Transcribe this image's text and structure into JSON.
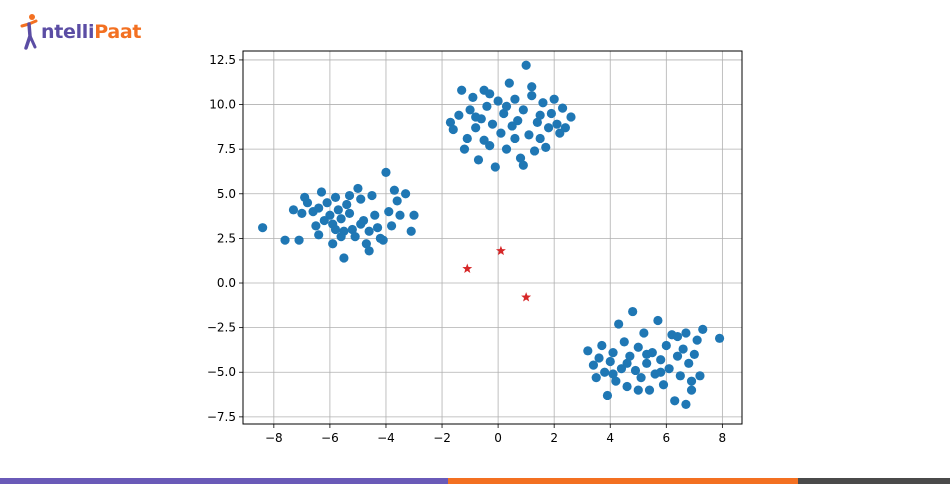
{
  "brand": {
    "name_prefix": "ntelli",
    "name_suffix": "Paat",
    "accent": "#f37021",
    "secondary": "#5b4da4"
  },
  "footer_colors": [
    "#6a5ab8",
    "#f37021",
    "#4a4a4a"
  ],
  "chart_data": {
    "type": "scatter",
    "title": "",
    "xlabel": "",
    "ylabel": "",
    "xlim": [
      -9.1,
      8.7
    ],
    "ylim": [
      -7.9,
      13.0
    ],
    "grid": true,
    "x_ticks": [
      -8,
      -6,
      -4,
      -2,
      0,
      2,
      4,
      6,
      8
    ],
    "x_tick_labels": [
      "−8",
      "−6",
      "−4",
      "−2",
      "0",
      "2",
      "4",
      "6",
      "8"
    ],
    "y_ticks": [
      -7.5,
      -5.0,
      -2.5,
      0.0,
      2.5,
      5.0,
      7.5,
      10.0,
      12.5
    ],
    "y_tick_labels": [
      "−7.5",
      "−5.0",
      "−2.5",
      "0.0",
      "2.5",
      "5.0",
      "7.5",
      "10.0",
      "12.5"
    ],
    "series": [
      {
        "marker": "circle",
        "color": "#1f77b4",
        "points": [
          [
            -8.4,
            3.1
          ],
          [
            -7.6,
            2.4
          ],
          [
            -7.1,
            2.4
          ],
          [
            -7.3,
            4.1
          ],
          [
            -6.8,
            4.5
          ],
          [
            -6.6,
            4.0
          ],
          [
            -6.5,
            3.2
          ],
          [
            -6.4,
            2.7
          ],
          [
            -6.3,
            5.1
          ],
          [
            -6.1,
            4.5
          ],
          [
            -6.0,
            3.8
          ],
          [
            -5.9,
            3.3
          ],
          [
            -5.9,
            2.2
          ],
          [
            -5.8,
            4.8
          ],
          [
            -5.7,
            4.1
          ],
          [
            -5.6,
            3.6
          ],
          [
            -5.5,
            2.9
          ],
          [
            -5.5,
            1.4
          ],
          [
            -5.4,
            4.4
          ],
          [
            -5.3,
            3.9
          ],
          [
            -5.2,
            3.0
          ],
          [
            -5.1,
            2.6
          ],
          [
            -5.0,
            5.3
          ],
          [
            -4.9,
            4.7
          ],
          [
            -4.8,
            3.5
          ],
          [
            -4.7,
            2.2
          ],
          [
            -4.6,
            1.8
          ],
          [
            -4.5,
            4.9
          ],
          [
            -4.4,
            3.8
          ],
          [
            -4.3,
            3.1
          ],
          [
            -4.2,
            2.5
          ],
          [
            -4.0,
            6.2
          ],
          [
            -3.9,
            4.0
          ],
          [
            -3.8,
            3.2
          ],
          [
            -3.7,
            5.2
          ],
          [
            -3.5,
            3.8
          ],
          [
            -3.3,
            5.0
          ],
          [
            -3.1,
            2.9
          ],
          [
            -3.0,
            3.8
          ],
          [
            -4.1,
            2.4
          ],
          [
            -6.9,
            4.8
          ],
          [
            -6.2,
            3.5
          ],
          [
            -5.6,
            2.6
          ],
          [
            -5.3,
            4.9
          ],
          [
            -4.9,
            3.3
          ],
          [
            -4.6,
            2.9
          ],
          [
            -5.8,
            3.0
          ],
          [
            -6.4,
            4.2
          ],
          [
            -7.0,
            3.9
          ],
          [
            -3.6,
            4.6
          ],
          [
            -1.7,
            9.0
          ],
          [
            -1.6,
            8.6
          ],
          [
            -1.4,
            9.4
          ],
          [
            -1.3,
            10.8
          ],
          [
            -1.2,
            7.5
          ],
          [
            -1.1,
            8.1
          ],
          [
            -1.0,
            9.7
          ],
          [
            -0.9,
            10.4
          ],
          [
            -0.8,
            8.7
          ],
          [
            -0.7,
            6.9
          ],
          [
            -0.6,
            9.2
          ],
          [
            -0.5,
            10.8
          ],
          [
            -0.5,
            8.0
          ],
          [
            -0.4,
            9.9
          ],
          [
            -0.3,
            7.7
          ],
          [
            -0.2,
            8.9
          ],
          [
            -0.1,
            6.5
          ],
          [
            0.0,
            10.2
          ],
          [
            0.1,
            8.4
          ],
          [
            0.2,
            9.5
          ],
          [
            0.3,
            7.5
          ],
          [
            0.4,
            11.2
          ],
          [
            0.5,
            8.8
          ],
          [
            0.6,
            10.3
          ],
          [
            0.7,
            9.1
          ],
          [
            0.8,
            7.0
          ],
          [
            0.9,
            9.7
          ],
          [
            1.0,
            12.2
          ],
          [
            1.1,
            8.3
          ],
          [
            1.2,
            10.5
          ],
          [
            1.3,
            7.4
          ],
          [
            1.4,
            9.0
          ],
          [
            1.5,
            8.1
          ],
          [
            1.6,
            10.1
          ],
          [
            1.7,
            7.6
          ],
          [
            1.8,
            8.7
          ],
          [
            1.9,
            9.5
          ],
          [
            2.0,
            10.3
          ],
          [
            2.1,
            8.9
          ],
          [
            2.2,
            8.4
          ],
          [
            2.3,
            9.8
          ],
          [
            2.4,
            8.7
          ],
          [
            2.6,
            9.3
          ],
          [
            1.2,
            11.0
          ],
          [
            0.9,
            6.6
          ],
          [
            -0.3,
            10.6
          ],
          [
            0.6,
            8.1
          ],
          [
            1.5,
            9.4
          ],
          [
            -0.8,
            9.3
          ],
          [
            0.3,
            9.9
          ],
          [
            3.2,
            -3.8
          ],
          [
            3.4,
            -4.6
          ],
          [
            3.5,
            -5.3
          ],
          [
            3.6,
            -4.2
          ],
          [
            3.7,
            -3.5
          ],
          [
            3.8,
            -5.0
          ],
          [
            3.9,
            -6.3
          ],
          [
            4.0,
            -4.4
          ],
          [
            4.1,
            -3.9
          ],
          [
            4.2,
            -5.5
          ],
          [
            4.3,
            -2.3
          ],
          [
            4.4,
            -4.8
          ],
          [
            4.5,
            -3.3
          ],
          [
            4.6,
            -5.8
          ],
          [
            4.7,
            -4.1
          ],
          [
            4.8,
            -1.6
          ],
          [
            4.9,
            -4.9
          ],
          [
            5.0,
            -3.6
          ],
          [
            5.1,
            -5.3
          ],
          [
            5.2,
            -2.8
          ],
          [
            5.3,
            -4.5
          ],
          [
            5.4,
            -6.0
          ],
          [
            5.5,
            -3.9
          ],
          [
            5.6,
            -5.1
          ],
          [
            5.7,
            -2.1
          ],
          [
            5.8,
            -4.3
          ],
          [
            5.9,
            -5.7
          ],
          [
            6.0,
            -3.5
          ],
          [
            6.1,
            -4.8
          ],
          [
            6.2,
            -2.9
          ],
          [
            6.3,
            -6.6
          ],
          [
            6.4,
            -4.1
          ],
          [
            6.5,
            -5.2
          ],
          [
            6.6,
            -3.7
          ],
          [
            6.7,
            -6.8
          ],
          [
            6.8,
            -4.5
          ],
          [
            6.9,
            -5.5
          ],
          [
            7.0,
            -4.0
          ],
          [
            7.1,
            -3.2
          ],
          [
            7.2,
            -5.2
          ],
          [
            7.3,
            -2.6
          ],
          [
            7.9,
            -3.1
          ],
          [
            6.9,
            -6.0
          ],
          [
            5.3,
            -4.0
          ],
          [
            4.6,
            -4.5
          ],
          [
            5.8,
            -5.0
          ],
          [
            6.4,
            -3.0
          ],
          [
            4.1,
            -5.1
          ],
          [
            5.0,
            -6.0
          ],
          [
            6.7,
            -2.8
          ]
        ]
      },
      {
        "marker": "star",
        "color": "#d62728",
        "points": [
          [
            -1.1,
            0.8
          ],
          [
            0.1,
            1.8
          ],
          [
            1.0,
            -0.8
          ]
        ]
      }
    ]
  }
}
